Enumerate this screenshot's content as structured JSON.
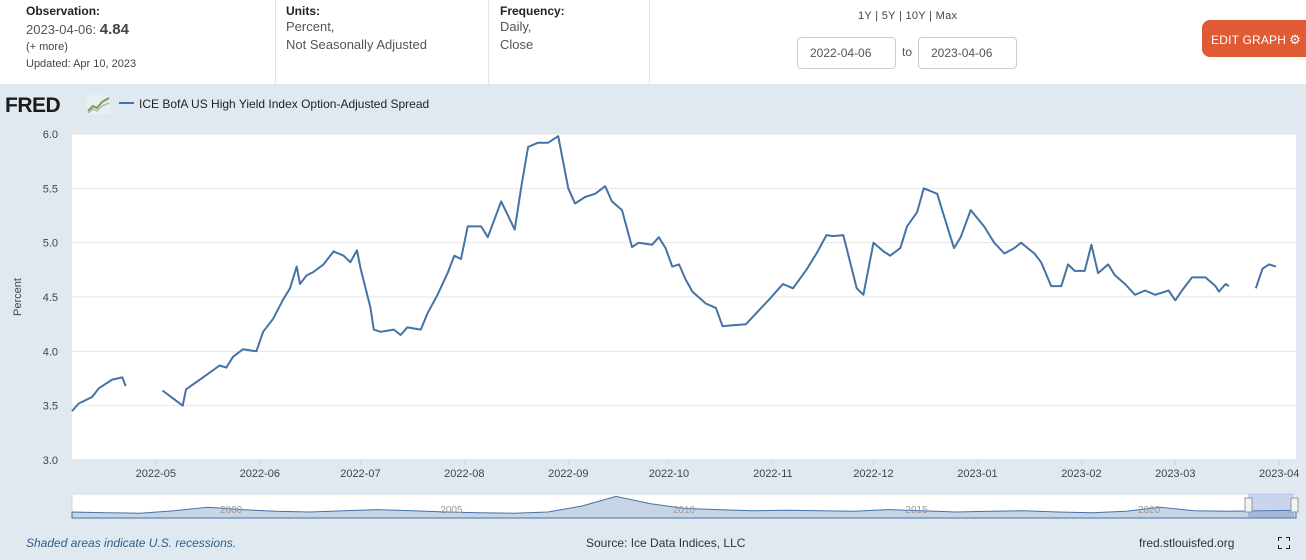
{
  "header": {
    "observation_label": "Observation:",
    "observation_date": "2023-04-06:",
    "observation_value": "4.84",
    "more": "(+ more)",
    "updated": "Updated: Apr 10, 2023",
    "units_label": "Units:",
    "units_line1": "Percent,",
    "units_line2": "Not Seasonally Adjusted",
    "frequency_label": "Frequency:",
    "frequency_line1": "Daily,",
    "frequency_line2": "Close",
    "ranges": [
      "1Y",
      "5Y",
      "10Y",
      "Max"
    ],
    "date_from": "2022-04-06",
    "to_label": "to",
    "date_to": "2023-04-06",
    "edit_button": "EDIT GRAPH",
    "edit_color": "#e05a34"
  },
  "logo_text": "FRED",
  "footer": {
    "recession_note": "Shaded areas indicate U.S. recessions.",
    "source": "Source: Ice Data Indices, LLC",
    "site": "fred.stlouisfed.org"
  },
  "chart_data": {
    "type": "line",
    "series": [
      {
        "name": "ICE BofA US High Yield Index Option-Adjusted Spread",
        "color": "#4572a7",
        "points": [
          [
            "2022-04-06",
            3.45
          ],
          [
            "2022-04-08",
            3.52
          ],
          [
            "2022-04-12",
            3.58
          ],
          [
            "2022-04-14",
            3.66
          ],
          [
            "2022-04-18",
            3.74
          ],
          [
            "2022-04-21",
            3.76
          ],
          [
            "2022-04-22",
            3.68
          ],
          [
            "2022-04-26",
            null
          ],
          [
            "2022-05-03",
            3.64
          ],
          [
            "2022-05-06",
            3.57
          ],
          [
            "2022-05-09",
            3.5
          ],
          [
            "2022-05-10",
            3.65
          ],
          [
            "2022-05-16",
            3.78
          ],
          [
            "2022-05-20",
            3.87
          ],
          [
            "2022-05-22",
            3.85
          ],
          [
            "2022-05-24",
            3.95
          ],
          [
            "2022-05-27",
            4.02
          ],
          [
            "2022-05-31",
            4.0
          ],
          [
            "2022-06-02",
            4.18
          ],
          [
            "2022-06-05",
            4.3
          ],
          [
            "2022-06-08",
            4.48
          ],
          [
            "2022-06-10",
            4.58
          ],
          [
            "2022-06-12",
            4.78
          ],
          [
            "2022-06-13",
            4.62
          ],
          [
            "2022-06-15",
            4.7
          ],
          [
            "2022-06-17",
            4.73
          ],
          [
            "2022-06-20",
            4.8
          ],
          [
            "2022-06-23",
            4.92
          ],
          [
            "2022-06-26",
            4.88
          ],
          [
            "2022-06-28",
            4.82
          ],
          [
            "2022-06-30",
            4.93
          ],
          [
            "2022-07-01",
            4.77
          ],
          [
            "2022-07-04",
            4.4
          ],
          [
            "2022-07-05",
            4.2
          ],
          [
            "2022-07-07",
            4.18
          ],
          [
            "2022-07-11",
            4.2
          ],
          [
            "2022-07-13",
            4.15
          ],
          [
            "2022-07-15",
            4.22
          ],
          [
            "2022-07-19",
            4.2
          ],
          [
            "2022-07-21",
            4.35
          ],
          [
            "2022-07-24",
            4.52
          ],
          [
            "2022-07-27",
            4.72
          ],
          [
            "2022-07-29",
            4.88
          ],
          [
            "2022-07-31",
            4.85
          ],
          [
            "2022-08-02",
            5.15
          ],
          [
            "2022-08-06",
            5.15
          ],
          [
            "2022-08-08",
            5.05
          ],
          [
            "2022-08-11",
            5.3
          ],
          [
            "2022-08-12",
            5.38
          ],
          [
            "2022-08-16",
            5.12
          ],
          [
            "2022-08-18",
            5.52
          ],
          [
            "2022-08-20",
            5.88
          ],
          [
            "2022-08-23",
            5.92
          ],
          [
            "2022-08-26",
            5.92
          ],
          [
            "2022-08-29",
            5.98
          ],
          [
            "2022-09-01",
            5.5
          ],
          [
            "2022-09-03",
            5.36
          ],
          [
            "2022-09-06",
            5.42
          ],
          [
            "2022-09-09",
            5.45
          ],
          [
            "2022-09-12",
            5.52
          ],
          [
            "2022-09-14",
            5.38
          ],
          [
            "2022-09-17",
            5.3
          ],
          [
            "2022-09-20",
            4.96
          ],
          [
            "2022-09-22",
            5.0
          ],
          [
            "2022-09-26",
            4.98
          ],
          [
            "2022-09-28",
            5.05
          ],
          [
            "2022-09-30",
            4.95
          ],
          [
            "2022-10-02",
            4.78
          ],
          [
            "2022-10-04",
            4.8
          ],
          [
            "2022-10-06",
            4.66
          ],
          [
            "2022-10-08",
            4.55
          ],
          [
            "2022-10-12",
            4.44
          ],
          [
            "2022-10-15",
            4.4
          ],
          [
            "2022-10-17",
            4.23
          ],
          [
            "2022-10-20",
            4.24
          ],
          [
            "2022-10-24",
            4.25
          ],
          [
            "2022-10-27",
            4.35
          ],
          [
            "2022-10-31",
            4.48
          ],
          [
            "2022-11-04",
            4.62
          ],
          [
            "2022-11-07",
            4.58
          ],
          [
            "2022-11-11",
            4.75
          ],
          [
            "2022-11-14",
            4.9
          ],
          [
            "2022-11-17",
            5.07
          ],
          [
            "2022-11-19",
            5.06
          ],
          [
            "2022-11-22",
            5.07
          ],
          [
            "2022-11-26",
            4.58
          ],
          [
            "2022-11-28",
            4.52
          ],
          [
            "2022-12-01",
            5.0
          ],
          [
            "2022-12-04",
            4.92
          ],
          [
            "2022-12-06",
            4.88
          ],
          [
            "2022-12-09",
            4.95
          ],
          [
            "2022-12-11",
            5.15
          ],
          [
            "2022-12-14",
            5.28
          ],
          [
            "2022-12-16",
            5.5
          ],
          [
            "2022-12-20",
            5.45
          ],
          [
            "2022-12-23",
            5.15
          ],
          [
            "2022-12-25",
            4.95
          ],
          [
            "2022-12-27",
            5.05
          ],
          [
            "2022-12-30",
            5.3
          ],
          [
            "2023-01-03",
            5.15
          ],
          [
            "2023-01-06",
            5.0
          ],
          [
            "2023-01-09",
            4.9
          ],
          [
            "2023-01-12",
            4.95
          ],
          [
            "2023-01-14",
            5.0
          ],
          [
            "2023-01-18",
            4.9
          ],
          [
            "2023-01-20",
            4.82
          ],
          [
            "2023-01-23",
            4.6
          ],
          [
            "2023-01-26",
            4.6
          ],
          [
            "2023-01-28",
            4.8
          ],
          [
            "2023-01-30",
            4.74
          ],
          [
            "2023-02-02",
            4.74
          ],
          [
            "2023-02-04",
            4.98
          ],
          [
            "2023-02-06",
            4.72
          ],
          [
            "2023-02-09",
            4.8
          ],
          [
            "2023-02-11",
            4.7
          ],
          [
            "2023-02-14",
            4.62
          ],
          [
            "2023-02-17",
            4.52
          ],
          [
            "2023-02-20",
            4.56
          ],
          [
            "2023-02-23",
            4.52
          ],
          [
            "2023-02-27",
            4.56
          ],
          [
            "2023-03-01",
            4.47
          ],
          [
            "2023-03-03",
            4.56
          ],
          [
            "2023-03-06",
            4.68
          ],
          [
            "2023-03-10",
            4.68
          ],
          [
            "2023-03-13",
            4.6
          ],
          [
            "2023-03-14",
            4.55
          ],
          [
            "2023-03-16",
            4.62
          ],
          [
            "2023-03-17",
            4.6
          ],
          [
            "2023-03-22",
            null
          ],
          [
            "2023-03-25",
            4.58
          ],
          [
            "2023-03-27",
            4.76
          ],
          [
            "2023-03-29",
            4.8
          ],
          [
            "2023-03-31",
            4.78
          ],
          [
            "2023-04-01",
            null
          ]
        ]
      }
    ],
    "xlabel": "",
    "ylabel": "Percent",
    "ylim": [
      3.0,
      6.0
    ],
    "yticks": [
      "3.0",
      "3.5",
      "4.0",
      "4.5",
      "5.0",
      "5.5",
      "6.0"
    ],
    "xticks": [
      "2022-05",
      "2022-06",
      "2022-07",
      "2022-08",
      "2022-09",
      "2022-10",
      "2022-11",
      "2022-12",
      "2023-01",
      "2023-02",
      "2023-03",
      "2023-04"
    ],
    "grid": true,
    "legend": "top-left",
    "navigator_labels": [
      "2000",
      "2005",
      "2010",
      "2015",
      "2020"
    ]
  }
}
